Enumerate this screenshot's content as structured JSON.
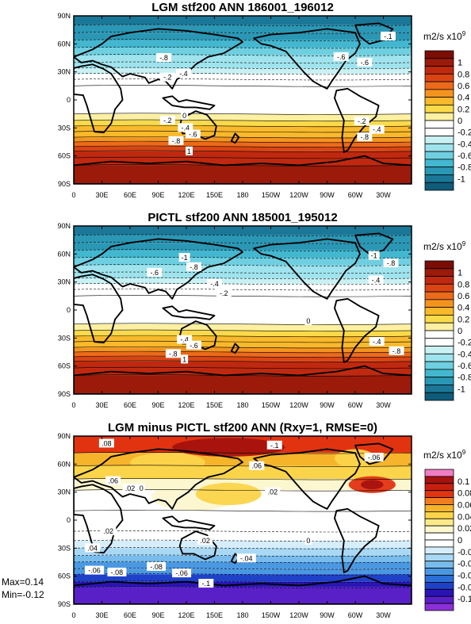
{
  "chart_data": [
    {
      "type": "heatmap",
      "title": "LGM stf200 ANN 186001_196012",
      "xticks": [
        "0",
        "30E",
        "60E",
        "90E",
        "120E",
        "150E",
        "180",
        "150W",
        "120W",
        "90W",
        "60W",
        "30W"
      ],
      "yticks": [
        "90N",
        "60N",
        "30N",
        "0",
        "30S",
        "60S",
        "90S"
      ],
      "ylim": [
        -90,
        90
      ],
      "colorbar": {
        "unit": "m2/s x10",
        "unit_exp": "9",
        "labels": [
          "1",
          "0.8",
          "0.6",
          "0.4",
          "0.2",
          "0",
          "-0.2",
          "-0.4",
          "-0.6",
          "-0.8",
          "-1"
        ],
        "colors": [
          "#7a0e05",
          "#9c1a0a",
          "#c0290f",
          "#db4412",
          "#ec6a1a",
          "#f4941f",
          "#f9b92a",
          "#fbda4a",
          "#fdf0a0",
          "#ffffff",
          "#ffffff",
          "#c9f1f4",
          "#9ee3ed",
          "#6ecfe0",
          "#43b7d0",
          "#2a97b5",
          "#1a7797",
          "#0f5b7a"
        ]
      },
      "field_bands": [
        {
          "lat_top": 90,
          "lat_bottom": 80,
          "value": -1.0
        },
        {
          "lat_top": 80,
          "lat_bottom": 72,
          "value": -0.9
        },
        {
          "lat_top": 72,
          "lat_bottom": 64,
          "value": -0.8
        },
        {
          "lat_top": 64,
          "lat_bottom": 56,
          "value": -0.7
        },
        {
          "lat_top": 56,
          "lat_bottom": 48,
          "value": -0.6
        },
        {
          "lat_top": 48,
          "lat_bottom": 40,
          "value": -0.5
        },
        {
          "lat_top": 40,
          "lat_bottom": 34,
          "value": -0.4
        },
        {
          "lat_top": 34,
          "lat_bottom": 28,
          "value": -0.3
        },
        {
          "lat_top": 28,
          "lat_bottom": 22,
          "value": -0.2
        },
        {
          "lat_top": 22,
          "lat_bottom": 15,
          "value": -0.1
        },
        {
          "lat_top": 15,
          "lat_bottom": -15,
          "value": 0.0
        },
        {
          "lat_top": -15,
          "lat_bottom": -22,
          "value": 0.1
        },
        {
          "lat_top": -22,
          "lat_bottom": -28,
          "value": 0.2
        },
        {
          "lat_top": -28,
          "lat_bottom": -34,
          "value": 0.3
        },
        {
          "lat_top": -34,
          "lat_bottom": -40,
          "value": 0.4
        },
        {
          "lat_top": -40,
          "lat_bottom": -45,
          "value": 0.5
        },
        {
          "lat_top": -45,
          "lat_bottom": -50,
          "value": 0.6
        },
        {
          "lat_top": -50,
          "lat_bottom": -55,
          "value": 0.7
        },
        {
          "lat_top": -55,
          "lat_bottom": -62,
          "value": 0.8
        },
        {
          "lat_top": -62,
          "lat_bottom": -70,
          "value": 0.9
        },
        {
          "lat_top": -70,
          "lat_bottom": -90,
          "value": 1.0
        }
      ],
      "contour_labels": [
        {
          "text": "-.1",
          "lon": 335,
          "lat": 68
        },
        {
          "text": "-.8",
          "lon": 96,
          "lat": 45
        },
        {
          "text": "-.6",
          "lon": 285,
          "lat": 46
        },
        {
          "text": "-.6",
          "lon": 310,
          "lat": 40
        },
        {
          "text": "-.4",
          "lon": 117,
          "lat": 28
        },
        {
          "text": "-.2",
          "lon": 100,
          "lat": 24
        },
        {
          "text": "0",
          "lon": 118,
          "lat": -17
        },
        {
          "text": "-.2",
          "lon": 100,
          "lat": -22
        },
        {
          "text": "-.4",
          "lon": 119,
          "lat": -30
        },
        {
          "text": "-.6",
          "lon": 127,
          "lat": -37
        },
        {
          "text": "-.8",
          "lon": 109,
          "lat": -44
        },
        {
          "text": "1",
          "lon": 123,
          "lat": -55
        },
        {
          "text": "-.2",
          "lon": 307,
          "lat": -23
        },
        {
          "text": "-.4",
          "lon": 323,
          "lat": -32
        },
        {
          "text": "-.8",
          "lon": 310,
          "lat": -40
        }
      ]
    },
    {
      "type": "heatmap",
      "title": "PICTL stf200 ANN 185001_195012",
      "xticks": [
        "0",
        "30E",
        "60E",
        "90E",
        "120E",
        "150E",
        "180",
        "150W",
        "120W",
        "90W",
        "60W",
        "30W"
      ],
      "yticks": [
        "90N",
        "60N",
        "30N",
        "0",
        "30S",
        "60S",
        "90S"
      ],
      "ylim": [
        -90,
        90
      ],
      "colorbar": {
        "unit": "m2/s x10",
        "unit_exp": "9",
        "labels": [
          "1",
          "0.8",
          "0.6",
          "0.4",
          "0.2",
          "0",
          "-0.2",
          "-0.4",
          "-0.6",
          "-0.8",
          "-1"
        ],
        "colors": [
          "#7a0e05",
          "#9c1a0a",
          "#c0290f",
          "#db4412",
          "#ec6a1a",
          "#f4941f",
          "#f9b92a",
          "#fbda4a",
          "#fdf0a0",
          "#ffffff",
          "#ffffff",
          "#c9f1f4",
          "#9ee3ed",
          "#6ecfe0",
          "#43b7d0",
          "#2a97b5",
          "#1a7797",
          "#0f5b7a"
        ]
      },
      "field_bands": [
        {
          "lat_top": 90,
          "lat_bottom": 80,
          "value": -1.0
        },
        {
          "lat_top": 80,
          "lat_bottom": 72,
          "value": -0.9
        },
        {
          "lat_top": 72,
          "lat_bottom": 64,
          "value": -0.8
        },
        {
          "lat_top": 64,
          "lat_bottom": 56,
          "value": -0.7
        },
        {
          "lat_top": 56,
          "lat_bottom": 48,
          "value": -0.6
        },
        {
          "lat_top": 48,
          "lat_bottom": 40,
          "value": -0.5
        },
        {
          "lat_top": 40,
          "lat_bottom": 34,
          "value": -0.4
        },
        {
          "lat_top": 34,
          "lat_bottom": 28,
          "value": -0.3
        },
        {
          "lat_top": 28,
          "lat_bottom": 22,
          "value": -0.2
        },
        {
          "lat_top": 22,
          "lat_bottom": 15,
          "value": -0.1
        },
        {
          "lat_top": 15,
          "lat_bottom": -15,
          "value": 0.0
        },
        {
          "lat_top": -15,
          "lat_bottom": -22,
          "value": 0.1
        },
        {
          "lat_top": -22,
          "lat_bottom": -28,
          "value": 0.2
        },
        {
          "lat_top": -28,
          "lat_bottom": -34,
          "value": 0.3
        },
        {
          "lat_top": -34,
          "lat_bottom": -40,
          "value": 0.4
        },
        {
          "lat_top": -40,
          "lat_bottom": -45,
          "value": 0.5
        },
        {
          "lat_top": -45,
          "lat_bottom": -50,
          "value": 0.6
        },
        {
          "lat_top": -50,
          "lat_bottom": -55,
          "value": 0.7
        },
        {
          "lat_top": -55,
          "lat_bottom": -62,
          "value": 0.8
        },
        {
          "lat_top": -62,
          "lat_bottom": -70,
          "value": 0.9
        },
        {
          "lat_top": -70,
          "lat_bottom": -90,
          "value": 1.0
        }
      ],
      "contour_labels": [
        {
          "text": "-1",
          "lon": 320,
          "lat": 58
        },
        {
          "text": "-.8",
          "lon": 338,
          "lat": 50
        },
        {
          "text": "-1",
          "lon": 118,
          "lat": 56
        },
        {
          "text": "-.8",
          "lon": 128,
          "lat": 46
        },
        {
          "text": "-.6",
          "lon": 86,
          "lat": 40
        },
        {
          "text": "-.4",
          "lon": 150,
          "lat": 28
        },
        {
          "text": "-.2",
          "lon": 160,
          "lat": 18
        },
        {
          "text": "-.4",
          "lon": 322,
          "lat": 32
        },
        {
          "text": "0",
          "lon": 250,
          "lat": -12
        },
        {
          "text": "-.4",
          "lon": 118,
          "lat": -32
        },
        {
          "text": "-.6",
          "lon": 128,
          "lat": -38
        },
        {
          "text": "-.8",
          "lon": 106,
          "lat": -47
        },
        {
          "text": "1",
          "lon": 118,
          "lat": -53
        },
        {
          "text": "-.4",
          "lon": 323,
          "lat": -34
        },
        {
          "text": "-.8",
          "lon": 344,
          "lat": -44
        }
      ]
    },
    {
      "type": "heatmap",
      "title": "LGM minus PICTL stf200 ANN (Rxy=1, RMSE=0)",
      "xticks": [
        "0",
        "30E",
        "60E",
        "90E",
        "120E",
        "150E",
        "180",
        "150W",
        "120W",
        "90W",
        "60W",
        "30W"
      ],
      "yticks": [
        "90N",
        "60N",
        "30N",
        "0",
        "30S",
        "60S",
        "90S"
      ],
      "ylim": [
        -90,
        90
      ],
      "stats": {
        "max": "Max=0.14",
        "min": "Min=-0.12"
      },
      "colorbar": {
        "unit": "m2/s x10",
        "unit_exp": "9",
        "labels": [
          "0.1",
          "0.08",
          "0.06",
          "0.04",
          "0.02",
          "0",
          "-0.02",
          "-0.04",
          "-0.06",
          "-0.08",
          "-0.1"
        ],
        "colors": [
          "#f17cc4",
          "#a5120f",
          "#c7200f",
          "#e23311",
          "#f07d1f",
          "#f6b42a",
          "#fbd44a",
          "#fcea8a",
          "#fdf7cf",
          "#ffffff",
          "#ffffff",
          "#d6eefb",
          "#a9d8f4",
          "#77bcec",
          "#4b98e2",
          "#2b6fd6",
          "#1f40c8",
          "#2a14b6",
          "#5a20c8",
          "#8b30d8"
        ]
      },
      "field_bands": [
        {
          "lat_top": 90,
          "lat_bottom": 72,
          "value": 0.08
        },
        {
          "lat_top": 72,
          "lat_bottom": 58,
          "value": 0.06
        },
        {
          "lat_top": 58,
          "lat_bottom": 44,
          "value": 0.04
        },
        {
          "lat_top": 44,
          "lat_bottom": 32,
          "value": 0.02
        },
        {
          "lat_top": 32,
          "lat_bottom": 10,
          "value": 0.01
        },
        {
          "lat_top": 10,
          "lat_bottom": -12,
          "value": 0.0
        },
        {
          "lat_top": -12,
          "lat_bottom": -22,
          "value": -0.01
        },
        {
          "lat_top": -22,
          "lat_bottom": -30,
          "value": -0.02
        },
        {
          "lat_top": -30,
          "lat_bottom": -38,
          "value": -0.03
        },
        {
          "lat_top": -38,
          "lat_bottom": -45,
          "value": -0.04
        },
        {
          "lat_top": -45,
          "lat_bottom": -52,
          "value": -0.05
        },
        {
          "lat_top": -52,
          "lat_bottom": -58,
          "value": -0.06
        },
        {
          "lat_top": -58,
          "lat_bottom": -66,
          "value": -0.08
        },
        {
          "lat_top": -66,
          "lat_bottom": -72,
          "value": -0.09
        },
        {
          "lat_top": -72,
          "lat_bottom": -90,
          "value": -0.1
        }
      ],
      "field_blobs": [
        {
          "lon": 165,
          "lat": 78,
          "rlon": 60,
          "rlat": 10,
          "value": 0.1
        },
        {
          "lon": 128,
          "lat": 25,
          "rlon": 45,
          "rlat": 15,
          "value": 0.02
        },
        {
          "lon": 165,
          "lat": 28,
          "rlon": 35,
          "rlat": 12,
          "value": 0.04
        },
        {
          "lon": 318,
          "lat": 38,
          "rlon": 25,
          "rlat": 9,
          "value": 0.08
        },
        {
          "lon": 318,
          "lat": 38,
          "rlon": 12,
          "rlat": 5,
          "value": 0.1
        },
        {
          "lon": 300,
          "lat": 66,
          "rlon": 22,
          "rlat": 10,
          "value": 0.04
        },
        {
          "lon": 100,
          "lat": 62,
          "rlon": 40,
          "rlat": 10,
          "value": 0.04
        }
      ],
      "contour_labels": [
        {
          "text": "-.1",
          "lon": 214,
          "lat": 80
        },
        {
          "text": ".08",
          "lon": 35,
          "lat": 82
        },
        {
          "text": ".06",
          "lon": 195,
          "lat": 58
        },
        {
          "text": "-.06",
          "lon": 320,
          "lat": 67
        },
        {
          "text": ".06",
          "lon": 42,
          "lat": 42
        },
        {
          "text": ".02",
          "lon": 60,
          "lat": 34
        },
        {
          "text": "0",
          "lon": 72,
          "lat": 34
        },
        {
          "text": ".02",
          "lon": 212,
          "lat": 30
        },
        {
          "text": ".02",
          "lon": 37,
          "lat": -12
        },
        {
          "text": ".04",
          "lon": 20,
          "lat": -30
        },
        {
          "text": ".02",
          "lon": 140,
          "lat": -22
        },
        {
          "text": "0",
          "lon": 250,
          "lat": -22
        },
        {
          "text": "-.04",
          "lon": 184,
          "lat": -41
        },
        {
          "text": "-.06",
          "lon": 22,
          "lat": -54
        },
        {
          "text": "-.08",
          "lon": 46,
          "lat": -56
        },
        {
          "text": "-.08",
          "lon": 88,
          "lat": -50
        },
        {
          "text": "-.06",
          "lon": 115,
          "lat": -57
        },
        {
          "text": "-.1",
          "lon": 141,
          "lat": -68
        }
      ]
    }
  ]
}
